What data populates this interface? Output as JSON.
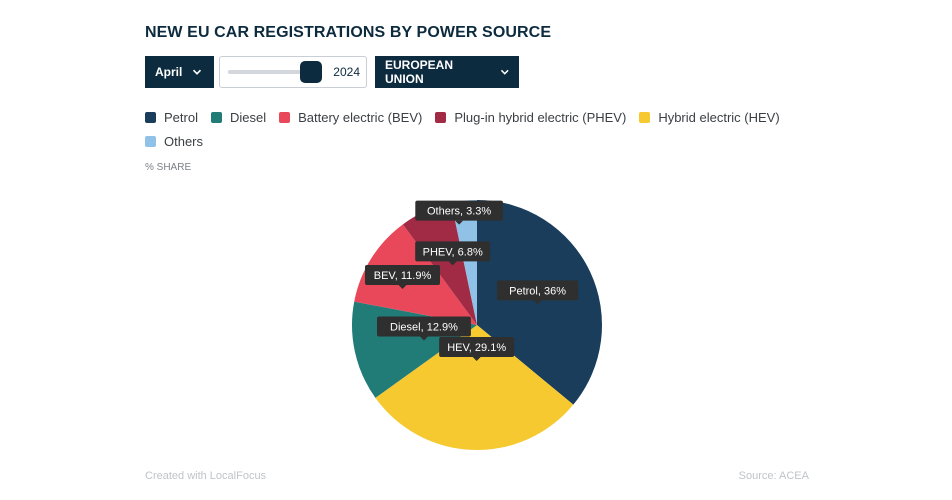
{
  "header": {
    "title": "NEW EU CAR REGISTRATIONS BY POWER SOURCE"
  },
  "controls": {
    "month_label": "April",
    "year_value": "2024",
    "slider_position": 0.87,
    "region_label": "EUROPEAN UNION"
  },
  "legend": [
    {
      "label": "Petrol",
      "color": "#1a3d5c"
    },
    {
      "label": "Diesel",
      "color": "#217b77"
    },
    {
      "label": "Battery electric (BEV)",
      "color": "#e8485a"
    },
    {
      "label": "Plug-in hybrid electric (PHEV)",
      "color": "#a12a45"
    },
    {
      "label": "Hybrid electric (HEV)",
      "color": "#f7c931"
    },
    {
      "label": "Others",
      "color": "#8fc2e6"
    }
  ],
  "unit_label": "% SHARE",
  "chart_data": {
    "type": "pie",
    "title": "NEW EU CAR REGISTRATIONS BY POWER SOURCE",
    "unit": "% SHARE",
    "slices": [
      {
        "name": "Petrol",
        "value": 36,
        "label": "Petrol, 36%",
        "color": "#1a3d5c"
      },
      {
        "name": "HEV",
        "value": 29.1,
        "label": "HEV, 29.1%",
        "color": "#f7c931"
      },
      {
        "name": "Diesel",
        "value": 12.9,
        "label": "Diesel, 12.9%",
        "color": "#217b77"
      },
      {
        "name": "BEV",
        "value": 11.9,
        "label": "BEV, 11.9%",
        "color": "#e8485a"
      },
      {
        "name": "PHEV",
        "value": 6.8,
        "label": "PHEV, 6.8%",
        "color": "#a12a45"
      },
      {
        "name": "Others",
        "value": 3.3,
        "label": "Others, 3.3%",
        "color": "#8fc2e6"
      }
    ]
  },
  "footer": {
    "created_with": "Created with LocalFocus",
    "source": "Source:  ACEA"
  }
}
